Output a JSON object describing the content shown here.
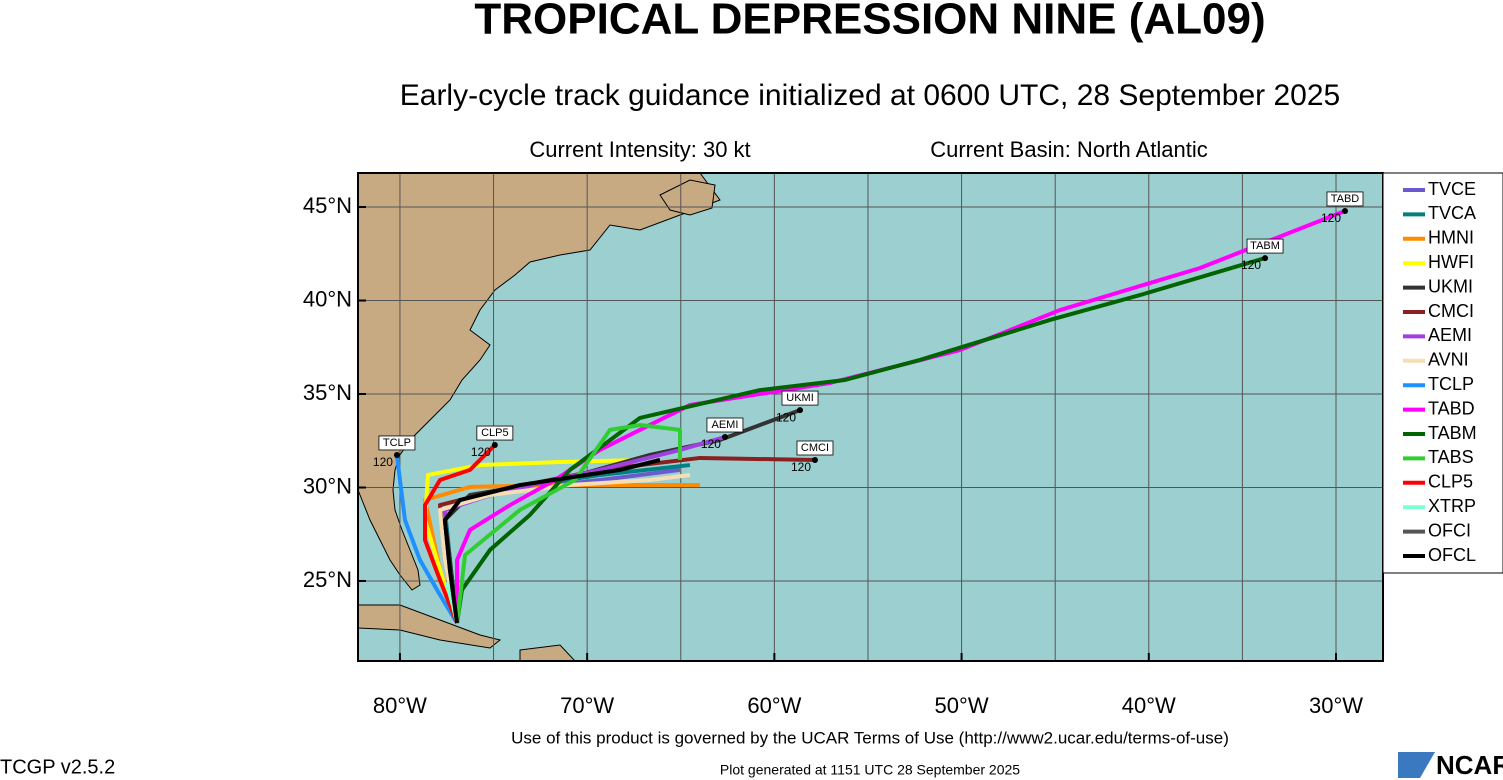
{
  "title": "TROPICAL DEPRESSION NINE (AL09)",
  "subtitle": "Early-cycle track guidance initialized at 0600 UTC, 28 September 2025",
  "intensity": "Current Intensity: 30 kt",
  "basin": "Current Basin: North Atlantic",
  "footer": {
    "terms": "Use of this product is governed by the UCAR Terms of Use (http://www2.ucar.edu/terms-of-use)",
    "version": "TCGP v2.5.2",
    "generated": "Plot generated at 1151 UTC   28 September 2025",
    "logo": "NCAR"
  },
  "map": {
    "xlim": [
      -82.24,
      -27.49
    ],
    "ylim": [
      20.72,
      46.82
    ],
    "xticks": [
      {
        "value": -80,
        "label": "80°W"
      },
      {
        "value": -70,
        "label": "70°W"
      },
      {
        "value": -60,
        "label": "60°W"
      },
      {
        "value": -50,
        "label": "50°W"
      },
      {
        "value": -40,
        "label": "40°W"
      },
      {
        "value": -30,
        "label": "30°W"
      }
    ],
    "yticks": [
      {
        "value": 25,
        "label": "25°N"
      },
      {
        "value": 30,
        "label": "30°N"
      },
      {
        "value": 35,
        "label": "35°N"
      },
      {
        "value": 40,
        "label": "40°N"
      },
      {
        "value": 45,
        "label": "45°N"
      }
    ],
    "xgrid": [
      -80,
      -75,
      -70,
      -65,
      -60,
      -55,
      -50,
      -45,
      -40,
      -35,
      -30
    ],
    "ygrid": [
      25,
      30,
      35,
      40,
      45
    ],
    "tracks": [
      {
        "name": "TVCE",
        "color": "#6a5acd",
        "lon": [
          -76.95,
          -77.33,
          -77.6,
          -74.66,
          -69.32,
          -65.04
        ],
        "lat": [
          22.75,
          26.12,
          28.8,
          29.76,
          30.4,
          30.94
        ]
      },
      {
        "name": "TVCA",
        "color": "#008080",
        "lon": [
          -76.95,
          -77.33,
          -77.6,
          -74.66,
          -69.32,
          -64.51
        ],
        "lat": [
          22.75,
          26.12,
          28.8,
          29.87,
          30.67,
          31.2
        ]
      },
      {
        "name": "HMNI",
        "color": "#ff8c00",
        "lon": [
          -76.95,
          -77.86,
          -78.66,
          -76.26,
          -71.45,
          -67.18,
          -63.97
        ],
        "lat": [
          22.75,
          25.59,
          29.33,
          30.03,
          30.13,
          30.13,
          30.13
        ]
      },
      {
        "name": "HWFI",
        "color": "#ffff00",
        "lon": [
          -76.95,
          -77.86,
          -78.66,
          -78.5,
          -75.72,
          -71.45,
          -67.18
        ],
        "lat": [
          22.75,
          25.59,
          28.26,
          30.67,
          31.2,
          31.36,
          31.47
        ]
      },
      {
        "name": "UKMI",
        "color": "#333333",
        "lon": [
          -76.95,
          -77.33,
          -77.6,
          -76.26,
          -71.45,
          -66.65,
          -62.91,
          -58.63
        ],
        "lat": [
          22.75,
          26.12,
          28.26,
          29.6,
          30.4,
          31.74,
          32.54,
          34.14
        ],
        "end_label": "120"
      },
      {
        "name": "CMCI",
        "color": "#8b2020",
        "lon": [
          -76.95,
          -77.6,
          -77.86,
          -74.66,
          -69.32,
          -63.97,
          -57.83
        ],
        "lat": [
          22.75,
          26.12,
          29.06,
          29.87,
          30.94,
          31.58,
          31.47
        ],
        "end_label": "120"
      },
      {
        "name": "AEMI",
        "color": "#a040e0",
        "lon": [
          -76.95,
          -77.44,
          -77.6,
          -74.66,
          -69.32,
          -65.04,
          -62.64
        ],
        "lat": [
          22.75,
          26.12,
          28.8,
          29.76,
          30.94,
          32.01,
          32.7
        ],
        "end_label": "120"
      },
      {
        "name": "AVNI",
        "color": "#f5deb3",
        "lon": [
          -76.95,
          -77.6,
          -77.86,
          -75.19,
          -70.92,
          -66.65,
          -64.51
        ],
        "lat": [
          22.75,
          26.12,
          28.8,
          29.6,
          30.13,
          30.4,
          30.67
        ]
      },
      {
        "name": "TCLP",
        "color": "#1e90ff",
        "lon": [
          -76.95,
          -77.86,
          -78.93,
          -79.73,
          -80.0,
          -80.16
        ],
        "lat": [
          22.75,
          24.25,
          26.12,
          28.26,
          30.4,
          31.74
        ],
        "end_label": "120"
      },
      {
        "name": "TABD",
        "color": "#ff00ff",
        "lon": [
          -76.95,
          -76.95,
          -76.26,
          -74.12,
          -71.72,
          -69.32,
          -64.51,
          -57.03,
          -50.09,
          -44.74,
          -37.26,
          -29.52
        ],
        "lat": [
          22.75,
          26.12,
          27.73,
          29.06,
          30.4,
          32.01,
          34.41,
          35.59,
          37.35,
          39.49,
          41.74,
          44.79
        ],
        "end_label": "120"
      },
      {
        "name": "TABM",
        "color": "#006400",
        "lon": [
          -76.95,
          -76.69,
          -75.19,
          -73.06,
          -70.92,
          -67.18,
          -60.77,
          -56.23,
          -52.22,
          -45.28,
          -40.47,
          -33.79
        ],
        "lat": [
          22.75,
          24.52,
          26.66,
          28.53,
          30.94,
          33.72,
          35.21,
          35.75,
          36.82,
          38.96,
          40.29,
          42.27
        ],
        "end_label": "120"
      },
      {
        "name": "TABS",
        "color": "#32cd32",
        "lon": [
          -76.95,
          -76.52,
          -73.59,
          -70.65,
          -68.78,
          -67.18,
          -65.04,
          -65.04
        ],
        "lat": [
          22.75,
          26.39,
          28.8,
          30.4,
          33.08,
          33.34,
          33.08,
          31.47
        ]
      },
      {
        "name": "CLP5",
        "color": "#ff0000",
        "lon": [
          -76.95,
          -77.86,
          -78.66,
          -78.66,
          -77.86,
          -76.26,
          -74.93
        ],
        "lat": [
          22.75,
          25.05,
          27.19,
          29.06,
          30.4,
          30.94,
          32.27
        ],
        "end_label": "120"
      },
      {
        "name": "XTRP",
        "color": "#7fffd4",
        "lon": [
          -76.95,
          -77.2,
          -77.5
        ],
        "lat": [
          22.75,
          23.8,
          24.9
        ]
      },
      {
        "name": "OFCI",
        "color": "#555555",
        "lon": [
          -76.95,
          -77.33,
          -77.6,
          -76.8,
          -73.59,
          -68.25,
          -66.11
        ],
        "lat": [
          22.75,
          25.59,
          28.26,
          29.33,
          30.13,
          30.94,
          31.47
        ]
      },
      {
        "name": "OFCL",
        "color": "#000000",
        "lon": [
          -76.95,
          -77.33,
          -77.6,
          -76.8,
          -73.59,
          -68.25,
          -66.11
        ],
        "lat": [
          22.75,
          25.59,
          28.26,
          29.33,
          30.13,
          30.94,
          31.47
        ]
      }
    ]
  }
}
